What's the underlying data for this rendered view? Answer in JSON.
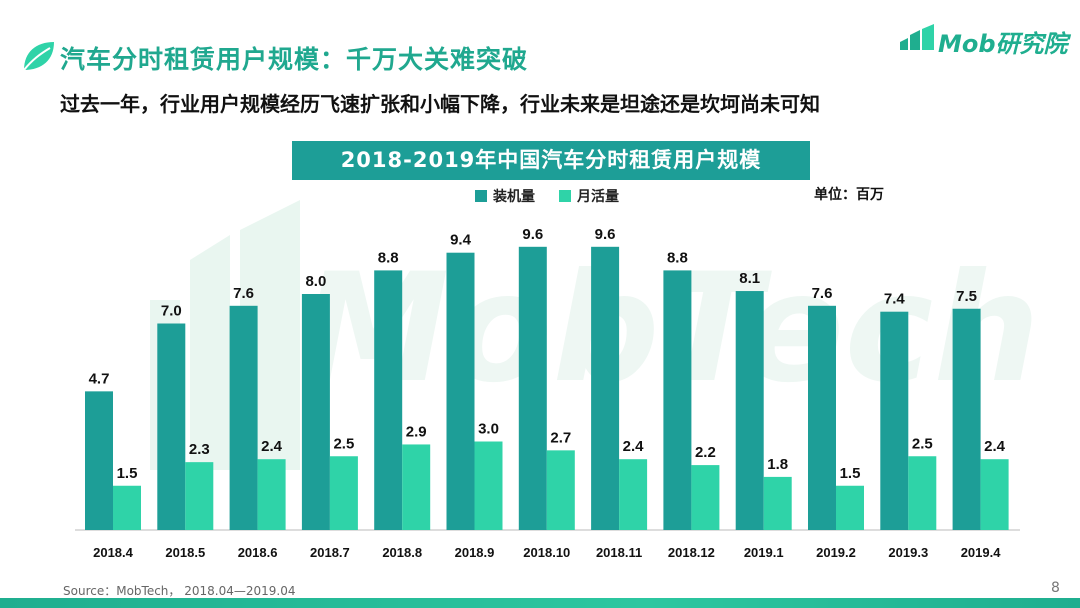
{
  "header": {
    "title": "汽车分时租赁用户规模：千万大关难突破",
    "subtitle": "过去一年，行业用户规模经历飞速扩张和小幅下降，行业未来是坦途还是坎坷尚未可知",
    "logo_text": "Mob研究院"
  },
  "chart_data": {
    "type": "bar",
    "title": "2018-2019年中国汽车分时租赁用户规模",
    "unit_label": "单位：百万",
    "categories": [
      "2018.4",
      "2018.5",
      "2018.6",
      "2018.7",
      "2018.8",
      "2018.9",
      "2018.10",
      "2018.11",
      "2018.12",
      "2019.1",
      "2019.2",
      "2019.3",
      "2019.4"
    ],
    "series": [
      {
        "name": "装机量",
        "color": "#1d9e97",
        "values": [
          4.7,
          7.0,
          7.6,
          8.0,
          8.8,
          9.4,
          9.6,
          9.6,
          8.8,
          8.1,
          7.6,
          7.4,
          7.5
        ]
      },
      {
        "name": "月活量",
        "color": "#2fd3a8",
        "values": [
          1.5,
          2.3,
          2.4,
          2.5,
          2.9,
          3.0,
          2.7,
          2.4,
          2.2,
          1.8,
          1.5,
          2.5,
          2.4
        ]
      }
    ],
    "ylim": [
      0,
      10
    ],
    "xlabel": "",
    "ylabel": ""
  },
  "watermark_text": "MobTech",
  "footer": {
    "source": "Source：MobTech，  2018.04—2019.04",
    "page_number": "8"
  },
  "colors": {
    "accent": "#1fae8f",
    "install_bar": "#1d9e97",
    "active_bar": "#2fd3a8"
  }
}
